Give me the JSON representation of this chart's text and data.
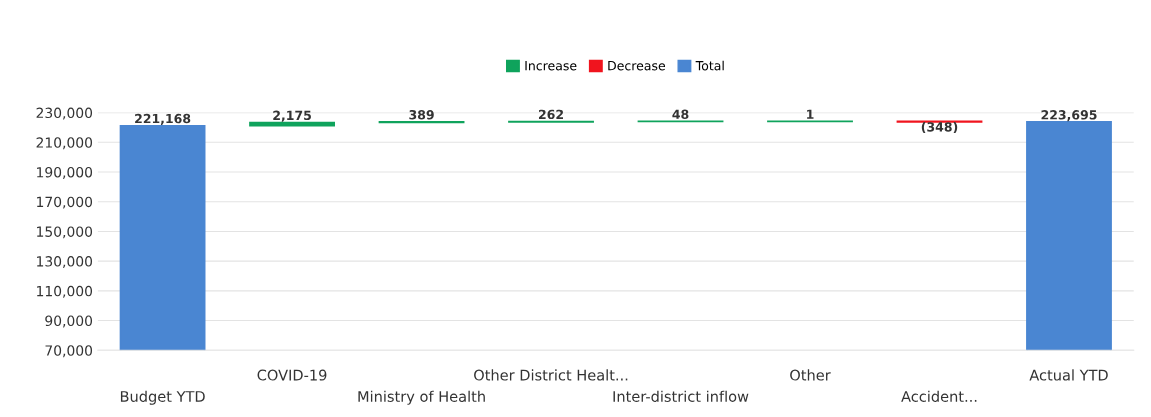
{
  "chart_data": {
    "type": "bar",
    "categories": [
      "Budget YTD",
      "COVID-19",
      "Ministry of Health",
      "Other District Healt...",
      "Inter-district inflow",
      "Other",
      "Accident...",
      "Actual YTD"
    ],
    "series": [
      {
        "name": "Increase",
        "color": "#0fa35c",
        "base": [
          null,
          221168,
          223343,
          223732,
          223994,
          224042,
          null,
          null
        ],
        "values": [
          null,
          2175,
          389,
          262,
          48,
          1,
          null,
          null
        ],
        "value_labels": [
          null,
          "2,175",
          "389",
          "262",
          "48",
          "1",
          null,
          null
        ]
      },
      {
        "name": "Decrease",
        "color": "#f0141e",
        "base": [
          null,
          null,
          null,
          null,
          null,
          null,
          224043,
          null
        ],
        "values": [
          null,
          null,
          null,
          null,
          null,
          null,
          -348,
          null
        ],
        "value_labels": [
          null,
          null,
          null,
          null,
          null,
          null,
          "(348)",
          null
        ]
      },
      {
        "name": "Total",
        "color": "#4a86d2",
        "values": [
          221168,
          null,
          null,
          null,
          null,
          null,
          null,
          223695
        ],
        "value_labels": [
          "221,168",
          null,
          null,
          null,
          null,
          null,
          null,
          "223,695"
        ]
      }
    ],
    "ylim": [
      70000,
      230000
    ],
    "yticks": [
      {
        "value": 70000,
        "label": "70,000"
      },
      {
        "value": 90000,
        "label": "90,000"
      },
      {
        "value": 110000,
        "label": "110,000"
      },
      {
        "value": 130000,
        "label": "130,000"
      },
      {
        "value": 150000,
        "label": "150,000"
      },
      {
        "value": 170000,
        "label": "170,000"
      },
      {
        "value": 190000,
        "label": "190,000"
      },
      {
        "value": 210000,
        "label": "210,000"
      },
      {
        "value": 230000,
        "label": "230,000"
      }
    ],
    "grid": "y",
    "legend": "top"
  }
}
